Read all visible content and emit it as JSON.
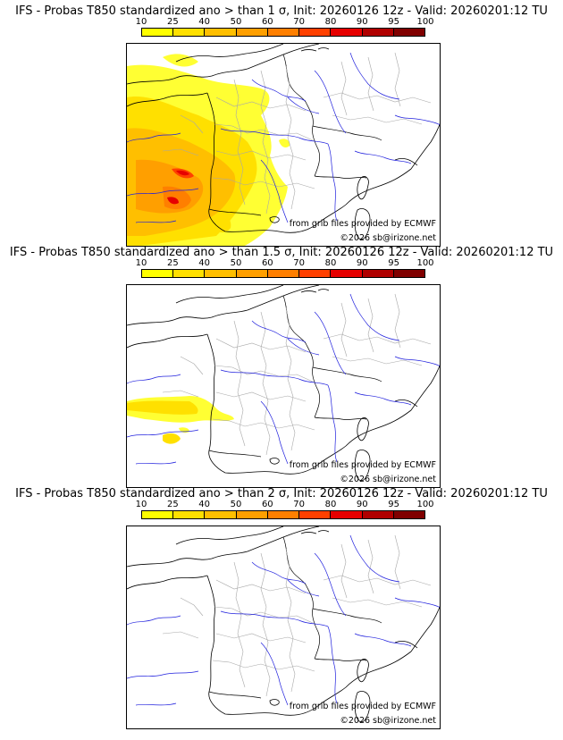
{
  "panels": [
    {
      "title": "IFS - Probas T850  standardized ano > than 1 σ, Init: 20260126 12z - Valid: 20260201:12 TU",
      "threshold_sigma": 1
    },
    {
      "title": "IFS - Probas T850  standardized ano > than 1.5 σ, Init: 20260126 12z - Valid: 20260201:12 TU",
      "threshold_sigma": 1.5
    },
    {
      "title": "IFS - Probas T850  standardized ano > than 2 σ, Init: 20260126 12z - Valid: 20260201:12 TU",
      "threshold_sigma": 2
    }
  ],
  "scale": {
    "labels": [
      "10",
      "25",
      "40",
      "50",
      "60",
      "70",
      "80",
      "90",
      "95",
      "100"
    ],
    "colors": [
      "#ffff00",
      "#ffe000",
      "#ffbf00",
      "#ff9f00",
      "#ff7f00",
      "#ff4000",
      "#e60000",
      "#b00000",
      "#800000"
    ]
  },
  "credits": {
    "source": "from grib files provided by ECMWF",
    "copyright": "©2026 sb@irizone.net"
  },
  "colors": {
    "coastline": "#000000",
    "rivers": "#2020dd",
    "borders": "#a0a0a0"
  }
}
